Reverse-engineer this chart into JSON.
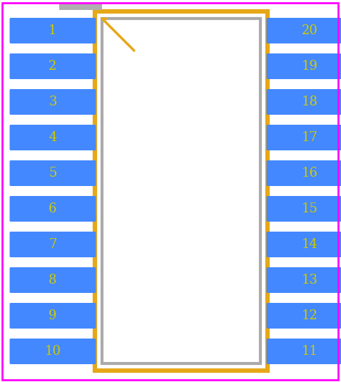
{
  "background_color": "#ffffff",
  "border_color": "#ff00ff",
  "pin_color": "#4488ff",
  "pin_text_color": "#cccc00",
  "body_fill": "#ffffff",
  "body_edge_color": "#b0b0b0",
  "pad_color": "#e6a817",
  "fig_width": 4.78,
  "fig_height": 5.36,
  "num_pins_per_side": 10,
  "left_pins": [
    1,
    2,
    3,
    4,
    5,
    6,
    7,
    8,
    9,
    10
  ],
  "right_pins": [
    20,
    19,
    18,
    17,
    16,
    15,
    14,
    13,
    12,
    11
  ]
}
